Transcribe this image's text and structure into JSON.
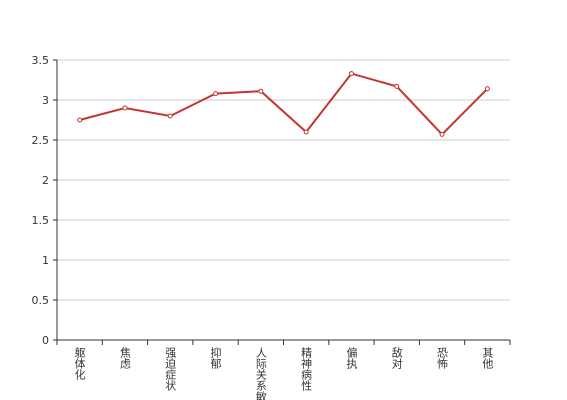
{
  "chart_data": {
    "type": "line",
    "categories": [
      "躯体化",
      "焦虑",
      "强迫症状",
      "抑郁",
      "人际关系敏",
      "精神病性",
      "偏执",
      "敌对",
      "恐怖",
      "其他"
    ],
    "series": [
      {
        "color": "#c23531",
        "values": [
          2.75,
          2.9,
          2.8,
          3.08,
          3.11,
          2.6,
          3.33,
          3.17,
          2.57,
          3.14
        ]
      }
    ],
    "ylim": [
      0,
      3.5
    ],
    "yticks": [
      0,
      0.5,
      1,
      1.5,
      2,
      2.5,
      3,
      3.5
    ],
    "grid": true
  }
}
